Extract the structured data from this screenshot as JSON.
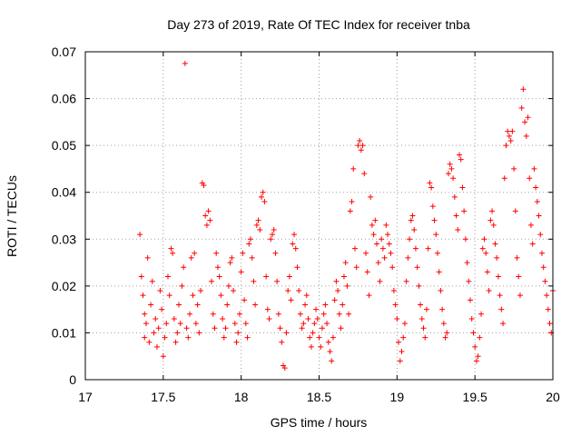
{
  "chart_data": {
    "type": "scatter",
    "title": "Day 273 of 2019, Rate Of TEC Index for receiver tnba",
    "xlabel": "GPS time / hours",
    "ylabel": "ROTI / TECUs",
    "xlim": [
      17,
      20
    ],
    "ylim": [
      0,
      0.07
    ],
    "xticks": [
      17,
      17.5,
      18,
      18.5,
      19,
      19.5,
      20
    ],
    "xtick_labels": [
      "17",
      "17.5",
      "18",
      "18.5",
      "19",
      "19.5",
      "20"
    ],
    "yticks": [
      0,
      0.01,
      0.02,
      0.03,
      0.04,
      0.05,
      0.06,
      0.07
    ],
    "ytick_labels": [
      "0",
      "0.01",
      "0.02",
      "0.03",
      "0.04",
      "0.05",
      "0.06",
      "0.07"
    ],
    "grid": true,
    "marker": "plus",
    "color": "#ff0000",
    "points": [
      [
        17.35,
        0.031
      ],
      [
        17.36,
        0.022
      ],
      [
        17.37,
        0.018
      ],
      [
        17.38,
        0.009
      ],
      [
        17.38,
        0.014
      ],
      [
        17.39,
        0.012
      ],
      [
        17.4,
        0.026
      ],
      [
        17.41,
        0.008
      ],
      [
        17.42,
        0.016
      ],
      [
        17.43,
        0.021
      ],
      [
        17.44,
        0.01
      ],
      [
        17.45,
        0.013
      ],
      [
        17.46,
        0.007
      ],
      [
        17.47,
        0.011
      ],
      [
        17.48,
        0.019
      ],
      [
        17.49,
        0.015
      ],
      [
        17.5,
        0.005
      ],
      [
        17.51,
        0.009
      ],
      [
        17.52,
        0.012
      ],
      [
        17.53,
        0.022
      ],
      [
        17.54,
        0.018
      ],
      [
        17.55,
        0.028
      ],
      [
        17.56,
        0.027
      ],
      [
        17.57,
        0.013
      ],
      [
        17.58,
        0.008
      ],
      [
        17.59,
        0.01
      ],
      [
        17.6,
        0.016
      ],
      [
        17.61,
        0.012
      ],
      [
        17.62,
        0.02
      ],
      [
        17.63,
        0.024
      ],
      [
        17.64,
        0.0675
      ],
      [
        17.65,
        0.011
      ],
      [
        17.66,
        0.009
      ],
      [
        17.67,
        0.014
      ],
      [
        17.68,
        0.026
      ],
      [
        17.69,
        0.018
      ],
      [
        17.7,
        0.027
      ],
      [
        17.71,
        0.012
      ],
      [
        17.72,
        0.016
      ],
      [
        17.73,
        0.01
      ],
      [
        17.74,
        0.019
      ],
      [
        17.75,
        0.042
      ],
      [
        17.76,
        0.0415
      ],
      [
        17.77,
        0.035
      ],
      [
        17.78,
        0.033
      ],
      [
        17.79,
        0.036
      ],
      [
        17.8,
        0.034
      ],
      [
        17.81,
        0.021
      ],
      [
        17.82,
        0.014
      ],
      [
        17.83,
        0.011
      ],
      [
        17.84,
        0.027
      ],
      [
        17.85,
        0.024
      ],
      [
        17.86,
        0.022
      ],
      [
        17.87,
        0.018
      ],
      [
        17.88,
        0.013
      ],
      [
        17.89,
        0.009
      ],
      [
        17.9,
        0.011
      ],
      [
        17.91,
        0.016
      ],
      [
        17.92,
        0.02
      ],
      [
        17.93,
        0.025
      ],
      [
        17.94,
        0.026
      ],
      [
        17.95,
        0.019
      ],
      [
        17.96,
        0.012
      ],
      [
        17.97,
        0.008
      ],
      [
        17.98,
        0.01
      ],
      [
        17.99,
        0.014
      ],
      [
        18.0,
        0.023
      ],
      [
        18.01,
        0.027
      ],
      [
        18.02,
        0.017
      ],
      [
        18.03,
        0.012
      ],
      [
        18.04,
        0.009
      ],
      [
        18.05,
        0.029
      ],
      [
        18.06,
        0.03
      ],
      [
        18.07,
        0.026
      ],
      [
        18.08,
        0.021
      ],
      [
        18.09,
        0.016
      ],
      [
        18.1,
        0.033
      ],
      [
        18.11,
        0.034
      ],
      [
        18.12,
        0.032
      ],
      [
        18.13,
        0.039
      ],
      [
        18.14,
        0.04
      ],
      [
        18.15,
        0.038
      ],
      [
        18.16,
        0.022
      ],
      [
        18.17,
        0.015
      ],
      [
        18.18,
        0.013
      ],
      [
        18.19,
        0.03
      ],
      [
        18.2,
        0.031
      ],
      [
        18.21,
        0.032
      ],
      [
        18.22,
        0.027
      ],
      [
        18.23,
        0.021
      ],
      [
        18.24,
        0.014
      ],
      [
        18.25,
        0.011
      ],
      [
        18.26,
        0.008
      ],
      [
        18.27,
        0.003
      ],
      [
        18.28,
        0.0025
      ],
      [
        18.29,
        0.01
      ],
      [
        18.3,
        0.019
      ],
      [
        18.31,
        0.022
      ],
      [
        18.32,
        0.017
      ],
      [
        18.33,
        0.029
      ],
      [
        18.34,
        0.031
      ],
      [
        18.35,
        0.028
      ],
      [
        18.36,
        0.024
      ],
      [
        18.37,
        0.019
      ],
      [
        18.38,
        0.014
      ],
      [
        18.39,
        0.011
      ],
      [
        18.4,
        0.012
      ],
      [
        18.41,
        0.016
      ],
      [
        18.42,
        0.018
      ],
      [
        18.43,
        0.013
      ],
      [
        18.44,
        0.009
      ],
      [
        18.45,
        0.007
      ],
      [
        18.46,
        0.01
      ],
      [
        18.47,
        0.012
      ],
      [
        18.48,
        0.015
      ],
      [
        18.49,
        0.013
      ],
      [
        18.5,
        0.009
      ],
      [
        18.51,
        0.007
      ],
      [
        18.52,
        0.011
      ],
      [
        18.53,
        0.014
      ],
      [
        18.54,
        0.016
      ],
      [
        18.55,
        0.012
      ],
      [
        18.56,
        0.008
      ],
      [
        18.57,
        0.006
      ],
      [
        18.58,
        0.004
      ],
      [
        18.59,
        0.009
      ],
      [
        18.6,
        0.017
      ],
      [
        18.61,
        0.021
      ],
      [
        18.62,
        0.019
      ],
      [
        18.63,
        0.014
      ],
      [
        18.64,
        0.011
      ],
      [
        18.65,
        0.016
      ],
      [
        18.66,
        0.022
      ],
      [
        18.67,
        0.025
      ],
      [
        18.68,
        0.02
      ],
      [
        18.69,
        0.014
      ],
      [
        18.7,
        0.036
      ],
      [
        18.71,
        0.038
      ],
      [
        18.72,
        0.045
      ],
      [
        18.73,
        0.028
      ],
      [
        18.74,
        0.024
      ],
      [
        18.75,
        0.05
      ],
      [
        18.76,
        0.051
      ],
      [
        18.77,
        0.049
      ],
      [
        18.78,
        0.05
      ],
      [
        18.79,
        0.044
      ],
      [
        18.8,
        0.027
      ],
      [
        18.81,
        0.023
      ],
      [
        18.82,
        0.018
      ],
      [
        18.83,
        0.039
      ],
      [
        18.84,
        0.033
      ],
      [
        18.85,
        0.031
      ],
      [
        18.86,
        0.034
      ],
      [
        18.87,
        0.029
      ],
      [
        18.88,
        0.025
      ],
      [
        18.89,
        0.021
      ],
      [
        18.9,
        0.03
      ],
      [
        18.91,
        0.028
      ],
      [
        18.92,
        0.026
      ],
      [
        18.93,
        0.033
      ],
      [
        18.94,
        0.031
      ],
      [
        18.95,
        0.029
      ],
      [
        18.96,
        0.027
      ],
      [
        18.97,
        0.024
      ],
      [
        18.98,
        0.019
      ],
      [
        18.99,
        0.016
      ],
      [
        19.0,
        0.013
      ],
      [
        19.01,
        0.008
      ],
      [
        19.02,
        0.004
      ],
      [
        19.03,
        0.006
      ],
      [
        19.04,
        0.009
      ],
      [
        19.05,
        0.012
      ],
      [
        19.06,
        0.021
      ],
      [
        19.07,
        0.026
      ],
      [
        19.08,
        0.03
      ],
      [
        19.09,
        0.034
      ],
      [
        19.1,
        0.035
      ],
      [
        19.11,
        0.032
      ],
      [
        19.12,
        0.028
      ],
      [
        19.13,
        0.024
      ],
      [
        19.14,
        0.02
      ],
      [
        19.15,
        0.016
      ],
      [
        19.16,
        0.013
      ],
      [
        19.17,
        0.011
      ],
      [
        19.18,
        0.009
      ],
      [
        19.19,
        0.015
      ],
      [
        19.2,
        0.028
      ],
      [
        19.21,
        0.042
      ],
      [
        19.22,
        0.041
      ],
      [
        19.23,
        0.037
      ],
      [
        19.24,
        0.034
      ],
      [
        19.25,
        0.031
      ],
      [
        19.26,
        0.027
      ],
      [
        19.27,
        0.023
      ],
      [
        19.28,
        0.019
      ],
      [
        19.29,
        0.015
      ],
      [
        19.3,
        0.012
      ],
      [
        19.31,
        0.009
      ],
      [
        19.32,
        0.01
      ],
      [
        19.33,
        0.044
      ],
      [
        19.34,
        0.046
      ],
      [
        19.35,
        0.045
      ],
      [
        19.36,
        0.043
      ],
      [
        19.37,
        0.039
      ],
      [
        19.38,
        0.035
      ],
      [
        19.39,
        0.032
      ],
      [
        19.4,
        0.048
      ],
      [
        19.41,
        0.047
      ],
      [
        19.42,
        0.041
      ],
      [
        19.43,
        0.036
      ],
      [
        19.44,
        0.03
      ],
      [
        19.45,
        0.025
      ],
      [
        19.46,
        0.021
      ],
      [
        19.47,
        0.017
      ],
      [
        19.48,
        0.013
      ],
      [
        19.49,
        0.01
      ],
      [
        19.5,
        0.007
      ],
      [
        19.51,
        0.004
      ],
      [
        19.52,
        0.005
      ],
      [
        19.53,
        0.009
      ],
      [
        19.54,
        0.014
      ],
      [
        19.55,
        0.028
      ],
      [
        19.56,
        0.03
      ],
      [
        19.57,
        0.027
      ],
      [
        19.58,
        0.023
      ],
      [
        19.59,
        0.019
      ],
      [
        19.6,
        0.034
      ],
      [
        19.61,
        0.036
      ],
      [
        19.62,
        0.033
      ],
      [
        19.63,
        0.029
      ],
      [
        19.64,
        0.026
      ],
      [
        19.65,
        0.022
      ],
      [
        19.66,
        0.018
      ],
      [
        19.67,
        0.015
      ],
      [
        19.68,
        0.012
      ],
      [
        19.69,
        0.043
      ],
      [
        19.7,
        0.05
      ],
      [
        19.71,
        0.053
      ],
      [
        19.72,
        0.052
      ],
      [
        19.73,
        0.051
      ],
      [
        19.74,
        0.053
      ],
      [
        19.75,
        0.045
      ],
      [
        19.76,
        0.036
      ],
      [
        19.77,
        0.026
      ],
      [
        19.78,
        0.022
      ],
      [
        19.79,
        0.018
      ],
      [
        19.8,
        0.058
      ],
      [
        19.81,
        0.062
      ],
      [
        19.82,
        0.055
      ],
      [
        19.83,
        0.052
      ],
      [
        19.84,
        0.056
      ],
      [
        19.85,
        0.043
      ],
      [
        19.86,
        0.033
      ],
      [
        19.87,
        0.029
      ],
      [
        19.88,
        0.045
      ],
      [
        19.89,
        0.041
      ],
      [
        19.9,
        0.038
      ],
      [
        19.91,
        0.035
      ],
      [
        19.92,
        0.031
      ],
      [
        19.93,
        0.027
      ],
      [
        19.94,
        0.024
      ],
      [
        19.95,
        0.021
      ],
      [
        19.96,
        0.018
      ],
      [
        19.97,
        0.015
      ],
      [
        19.98,
        0.012
      ],
      [
        19.99,
        0.01
      ],
      [
        20.0,
        0.019
      ]
    ]
  }
}
